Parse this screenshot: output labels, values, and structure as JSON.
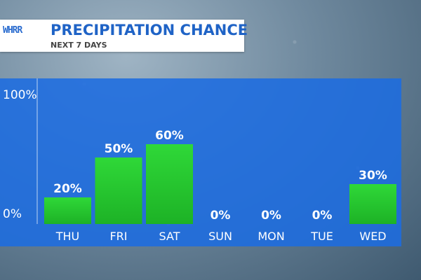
{
  "header": {
    "logo_text": "WHRR",
    "title": "PRECIPITATION CHANCE",
    "subtitle": "NEXT 7 DAYS"
  },
  "colors": {
    "panel": "#1c6ce0",
    "bar": "#22c22b",
    "bar_top": "#2fd838"
  },
  "chart_data": {
    "type": "bar",
    "title": "PRECIPITATION CHANCE",
    "subtitle": "NEXT 7 DAYS",
    "categories": [
      "THU",
      "FRI",
      "SAT",
      "SUN",
      "MON",
      "TUE",
      "WED"
    ],
    "values": [
      20,
      50,
      60,
      0,
      0,
      0,
      30
    ],
    "value_labels": [
      "20%",
      "50%",
      "60%",
      "0%",
      "0%",
      "0%",
      "30%"
    ],
    "ylim": [
      0,
      100
    ],
    "y_tick_labels": [
      "100%",
      "0%"
    ],
    "grid": false
  }
}
